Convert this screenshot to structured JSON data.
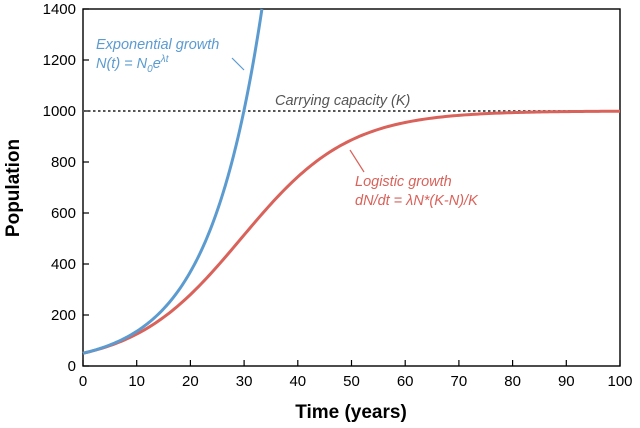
{
  "chart_data": {
    "type": "line",
    "xlabel": "Time (years)",
    "ylabel": "Population",
    "xlim": [
      0,
      100
    ],
    "ylim": [
      0,
      1400
    ],
    "xticks": [
      "0",
      "10",
      "20",
      "30",
      "40",
      "50",
      "60",
      "70",
      "80",
      "90",
      "100"
    ],
    "yticks": [
      "0",
      "200",
      "400",
      "600",
      "800",
      "1000",
      "1200",
      "1400"
    ],
    "grid": false,
    "series": [
      {
        "name": "Exponential growth",
        "formula_prefix": "N(t) = N",
        "formula_sub": "0",
        "formula_base": "e",
        "formula_sup": "λt",
        "color": "#5b9bd0",
        "N0": 50,
        "rate": 0.1,
        "x": [
          0,
          5,
          10,
          15,
          20,
          25,
          30,
          33.6
        ],
        "y": [
          50,
          82,
          136,
          224,
          369,
          609,
          1004,
          1400
        ]
      },
      {
        "name": "Logistic growth",
        "formula": "dN/dt = λN*(K-N)/K",
        "color": "#d9625a",
        "N0": 50,
        "rate": 0.1,
        "K": 1000,
        "x": [
          0,
          10,
          20,
          30,
          40,
          50,
          60,
          70,
          80,
          90,
          100
        ],
        "y": [
          50,
          125,
          280,
          514,
          742,
          887,
          955,
          983,
          994,
          998,
          999
        ]
      }
    ],
    "reference_line": {
      "label": "Carrying capacity (K)",
      "y": 1000,
      "color": "#555555",
      "style": "dotted"
    }
  }
}
